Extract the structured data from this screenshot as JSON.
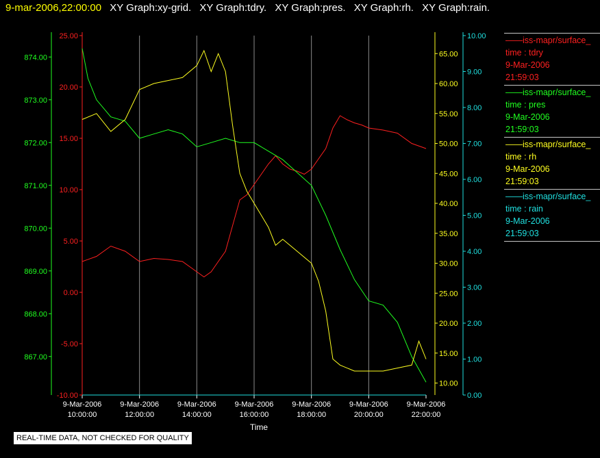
{
  "header": {
    "timestamp": "9-mar-2006,22:00:00",
    "graphs": [
      "XY Graph:xy-grid.",
      "XY Graph:tdry.",
      "XY Graph:pres.",
      "XY Graph:rh.",
      "XY Graph:rain."
    ]
  },
  "legend": [
    {
      "line": "iss-mapr/surface_",
      "label": "time : tdry",
      "date": "9-Mar-2006",
      "time": "21:59:03",
      "color": "#ff2020"
    },
    {
      "line": "iss-mapr/surface_",
      "label": "time : pres",
      "date": "9-Mar-2006",
      "time": "21:59:03",
      "color": "#20ff20"
    },
    {
      "line": "iss-mapr/surface_",
      "label": "time : rh",
      "date": "9-Mar-2006",
      "time": "21:59:03",
      "color": "#ffff20"
    },
    {
      "line": "iss-mapr/surface_",
      "label": "time : rain",
      "date": "9-Mar-2006",
      "time": "21:59:03",
      "color": "#20e0e0"
    }
  ],
  "notice": "REAL-TIME DATA, NOT CHECKED FOR QUALITY",
  "chart_data": {
    "type": "line",
    "xlabel": "Time",
    "x_ticks": [
      {
        "date": "9-Mar-2006",
        "time": "10:00:00",
        "hour": 10
      },
      {
        "date": "9-Mar-2006",
        "time": "12:00:00",
        "hour": 12
      },
      {
        "date": "9-Mar-2006",
        "time": "14:00:00",
        "hour": 14
      },
      {
        "date": "9-Mar-2006",
        "time": "16:00:00",
        "hour": 16
      },
      {
        "date": "9-Mar-2006",
        "time": "18:00:00",
        "hour": 18
      },
      {
        "date": "9-Mar-2006",
        "time": "20:00:00",
        "hour": 20
      },
      {
        "date": "9-Mar-2006",
        "time": "22:00:00",
        "hour": 22
      }
    ],
    "xlim": [
      10,
      22
    ],
    "grid": "vertical",
    "axes": {
      "tdry": {
        "color": "#ff2020",
        "ylim": [
          -10,
          25
        ],
        "ticks": [
          "25.00",
          "20.00",
          "15.00",
          "10.00",
          "5.00",
          "0.00",
          "-5.00",
          "-10.00"
        ]
      },
      "pres": {
        "color": "#20ff20",
        "ylim": [
          866.1,
          874.5
        ],
        "ticks": [
          "874.00",
          "873.00",
          "872.00",
          "871.00",
          "870.00",
          "869.00",
          "868.00",
          "867.00"
        ]
      },
      "rh": {
        "color": "#ffff20",
        "ylim": [
          8,
          68
        ],
        "ticks": [
          "65.00",
          "60.00",
          "55.00",
          "50.00",
          "45.00",
          "40.00",
          "35.00",
          "30.00",
          "25.00",
          "20.00",
          "15.00",
          "10.00"
        ]
      },
      "rain": {
        "color": "#20e0e0",
        "ylim": [
          0,
          10
        ],
        "ticks": [
          "10.00",
          "9.00",
          "8.00",
          "7.00",
          "6.00",
          "5.00",
          "4.00",
          "3.00",
          "2.00",
          "1.00",
          "0.00"
        ]
      }
    },
    "series": [
      {
        "key": "tdry",
        "name": "tdry",
        "color": "#ff2020",
        "x": [
          10,
          10.5,
          11,
          11.5,
          12,
          12.5,
          13,
          13.5,
          14,
          14.25,
          14.5,
          14.75,
          15,
          15.25,
          15.5,
          15.75,
          16,
          16.25,
          16.5,
          16.75,
          17,
          17.25,
          17.5,
          17.75,
          18,
          18.25,
          18.5,
          18.75,
          19,
          19.25,
          19.5,
          19.75,
          20,
          20.5,
          21,
          21.5,
          22
        ],
        "y": [
          3,
          3.5,
          4.5,
          4,
          3,
          3.3,
          3.2,
          3,
          2,
          1.5,
          2,
          3,
          4,
          6.5,
          9,
          9.5,
          10.5,
          11.5,
          12.5,
          13.3,
          12.5,
          12,
          11.8,
          11.5,
          12,
          13,
          14,
          16,
          17.2,
          16.8,
          16.5,
          16.3,
          16,
          15.8,
          15.5,
          14.5,
          14
        ]
      },
      {
        "key": "pres",
        "name": "pres",
        "color": "#20ff20",
        "x": [
          10,
          10.2,
          10.5,
          11,
          11.5,
          12,
          12.5,
          13,
          13.5,
          14,
          14.5,
          15,
          15.5,
          16,
          16.5,
          17,
          17.5,
          18,
          18.5,
          19,
          19.5,
          20,
          20.5,
          21,
          21.5,
          22
        ],
        "y": [
          874.2,
          873.5,
          873.0,
          872.6,
          872.5,
          872.1,
          872.2,
          872.3,
          872.2,
          871.9,
          872.0,
          872.1,
          872.0,
          872.0,
          871.8,
          871.6,
          871.3,
          871.0,
          870.3,
          869.5,
          868.8,
          868.3,
          868.2,
          867.8,
          867.0,
          866.4
        ]
      },
      {
        "key": "rh",
        "name": "rh",
        "color": "#ffff20",
        "x": [
          10,
          10.5,
          11,
          11.5,
          12,
          12.5,
          13,
          13.5,
          14,
          14.25,
          14.5,
          14.75,
          15,
          15.25,
          15.5,
          15.75,
          16,
          16.25,
          16.5,
          16.75,
          17,
          17.5,
          18,
          18.25,
          18.5,
          18.75,
          19,
          19.5,
          20,
          20.5,
          21,
          21.5,
          21.75,
          22
        ],
        "y": [
          54,
          55,
          52,
          54,
          59,
          60,
          60.5,
          61,
          63,
          65.5,
          62,
          65,
          62,
          53,
          45,
          42,
          40,
          38,
          36,
          33,
          34,
          32,
          30,
          27,
          22,
          14,
          13,
          12,
          12,
          12,
          12.5,
          13,
          17,
          14
        ]
      },
      {
        "key": "rain",
        "name": "rain",
        "color": "#20e0e0",
        "x": [
          10,
          22
        ],
        "y": [
          0,
          0
        ]
      }
    ]
  }
}
